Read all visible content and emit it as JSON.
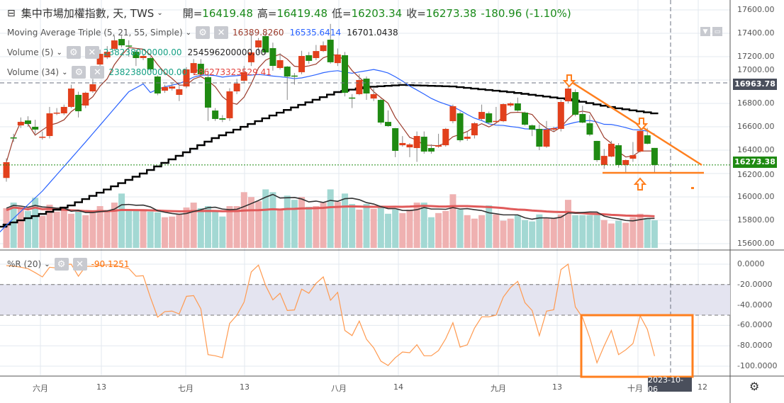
{
  "header": {
    "symbol": "集中市場加權指數, 天, TWS",
    "open_label": "開=",
    "open": "16419.48",
    "high_label": "高=",
    "high": "16419.48",
    "low_label": "低=",
    "low": "16203.34",
    "close_label": "收=",
    "close": "16273.38",
    "change": "-180.96 (-1.10%)"
  },
  "indicators": {
    "ma": {
      "label": "Moving Average Triple (5, 21, 55, Simple)",
      "v1": "16389.8260",
      "v2": "16535.6414",
      "v3": "16701.0438"
    },
    "vol5": {
      "label": "Volume (5)",
      "v1": "238238000000.00",
      "v2": "254596200000.00"
    },
    "vol34": {
      "label": "Volume (34)",
      "v1": "238238000000.00",
      "v2": "286273323529.41"
    },
    "wr": {
      "label": "%R (20)",
      "v1": "-90.1251"
    }
  },
  "price_axis": [
    "17600.00",
    "17400.00",
    "17200.00",
    "17000.00",
    "16800.00",
    "16600.00",
    "16400.00",
    "16200.00",
    "16000.00",
    "15800.00",
    "15600.00"
  ],
  "price_tags": {
    "crosshair": "16963.78",
    "last": "16273.38"
  },
  "wr_axis": [
    "0.0000",
    "-20.0000",
    "-40.0000",
    "-60.0000",
    "-80.0000",
    "-100.0000"
  ],
  "time_axis": [
    "六月",
    "13",
    "七月",
    "13",
    "八月",
    "14",
    "九月",
    "13",
    "十月",
    "12"
  ],
  "crosshair_date": "2023-10-06",
  "colors": {
    "up": "#e2401c",
    "down": "#1f8a12",
    "vol_up": "#efb1b1",
    "vol_down": "#a3d8d3",
    "ma5": "#9b3a2a",
    "ma21": "#2962ff",
    "ma55": "#000000",
    "wr": "#ff9a50",
    "drawing": "#ff7f1e"
  },
  "chart_data": {
    "type": "candlestick",
    "price_range": [
      15550,
      17700
    ],
    "ohlc": [
      [
        16162,
        16330,
        16130,
        16297
      ],
      [
        16509,
        16540,
        16470,
        16505
      ],
      [
        16612,
        16680,
        16590,
        16642
      ],
      [
        16654,
        16690,
        16600,
        16624
      ],
      [
        16600,
        16660,
        16540,
        16576
      ],
      [
        16512,
        16560,
        16490,
        16515
      ],
      [
        16521,
        16770,
        16500,
        16715
      ],
      [
        16718,
        16760,
        16700,
        16721
      ],
      [
        16715,
        16790,
        16700,
        16770
      ],
      [
        16770,
        16960,
        16760,
        16927
      ],
      [
        16873,
        16900,
        16680,
        16733
      ],
      [
        16782,
        16900,
        16760,
        16891
      ],
      [
        16903,
        17010,
        16890,
        16964
      ],
      [
        17133,
        17260,
        17100,
        17224
      ],
      [
        17194,
        17290,
        17180,
        17242
      ],
      [
        17267,
        17380,
        17250,
        17339
      ],
      [
        17351,
        17380,
        17280,
        17297
      ],
      [
        17295,
        17340,
        17200,
        17288
      ],
      [
        17242,
        17260,
        17120,
        17188
      ],
      [
        17188,
        17220,
        17170,
        17206
      ],
      [
        17188,
        17200,
        17070,
        17091
      ],
      [
        17030,
        17040,
        16870,
        16885
      ],
      [
        16909,
        16960,
        16890,
        16940
      ],
      [
        16927,
        16980,
        16910,
        16945
      ],
      [
        16873,
        16950,
        16820,
        16921
      ],
      [
        16945,
        17110,
        16930,
        17091
      ],
      [
        17060,
        17180,
        17050,
        17145
      ],
      [
        17139,
        17180,
        17030,
        17048
      ],
      [
        17024,
        17080,
        16650,
        16764
      ],
      [
        16739,
        16760,
        16650,
        16667
      ],
      [
        16673,
        16700,
        16640,
        16661
      ],
      [
        16673,
        16930,
        16650,
        16903
      ],
      [
        16903,
        17010,
        16880,
        16970
      ],
      [
        16994,
        17120,
        16980,
        17067
      ],
      [
        17152,
        17400,
        17120,
        17236
      ],
      [
        17279,
        17360,
        17230,
        17339
      ],
      [
        17376,
        17400,
        17220,
        17236
      ],
      [
        17273,
        17320,
        17080,
        17121
      ],
      [
        17103,
        17230,
        17090,
        17170
      ],
      [
        17115,
        17120,
        16830,
        17030
      ],
      [
        17038,
        17060,
        16960,
        17034
      ],
      [
        17067,
        17250,
        17050,
        17206
      ],
      [
        17212,
        17240,
        17140,
        17164
      ],
      [
        17188,
        17300,
        17170,
        17248
      ],
      [
        17248,
        17330,
        17240,
        17297
      ],
      [
        17345,
        17480,
        17140,
        17152
      ],
      [
        17145,
        17270,
        17120,
        17218
      ],
      [
        17212,
        17240,
        16860,
        16891
      ],
      [
        16850,
        16880,
        16760,
        16846
      ],
      [
        16879,
        17050,
        16870,
        17000
      ],
      [
        17012,
        17030,
        16830,
        16885
      ],
      [
        16842,
        16930,
        16820,
        16879
      ],
      [
        16830,
        16840,
        16620,
        16636
      ],
      [
        16642,
        16740,
        16600,
        16606
      ],
      [
        16588,
        16590,
        16340,
        16394
      ],
      [
        16442,
        16520,
        16430,
        16461
      ],
      [
        16424,
        16460,
        16340,
        16449
      ],
      [
        16418,
        16560,
        16300,
        16521
      ],
      [
        16515,
        16560,
        16370,
        16388
      ],
      [
        16418,
        16450,
        16370,
        16388
      ],
      [
        16430,
        16540,
        16420,
        16442
      ],
      [
        16442,
        16590,
        16430,
        16582
      ],
      [
        16648,
        16790,
        16630,
        16776
      ],
      [
        16715,
        16730,
        16470,
        16485
      ],
      [
        16497,
        16560,
        16480,
        16515
      ],
      [
        16527,
        16640,
        16500,
        16630
      ],
      [
        16667,
        16790,
        16650,
        16727
      ],
      [
        16715,
        16730,
        16620,
        16636
      ],
      [
        16646,
        16770,
        16630,
        16650
      ],
      [
        16648,
        16800,
        16640,
        16794
      ],
      [
        16782,
        16810,
        16770,
        16800
      ],
      [
        16800,
        16850,
        16730,
        16739
      ],
      [
        16721,
        16730,
        16610,
        16618
      ],
      [
        16612,
        16620,
        16520,
        16576
      ],
      [
        16582,
        16620,
        16400,
        16430
      ],
      [
        16430,
        16650,
        16420,
        16576
      ],
      [
        16576,
        16600,
        16560,
        16588
      ],
      [
        16582,
        16830,
        16560,
        16812
      ],
      [
        16818,
        16960,
        16800,
        16927
      ],
      [
        16897,
        16920,
        16690,
        16703
      ],
      [
        16709,
        16780,
        16630,
        16636
      ],
      [
        16630,
        16700,
        16520,
        16533
      ],
      [
        16479,
        16480,
        16300,
        16315
      ],
      [
        16273,
        16410,
        16240,
        16351
      ],
      [
        16345,
        16480,
        16340,
        16455
      ],
      [
        16442,
        16460,
        16250,
        16273
      ],
      [
        16273,
        16320,
        16200,
        16315
      ],
      [
        16327,
        16470,
        16300,
        16357
      ],
      [
        16388,
        16580,
        16380,
        16564
      ],
      [
        16527,
        16590,
        16450,
        16455
      ],
      [
        16419,
        16419,
        16203,
        16273
      ]
    ],
    "volume_e8": [
      3420,
      3900,
      3480,
      3180,
      4320,
      2760,
      3720,
      3120,
      3240,
      2940,
      3120,
      2820,
      3120,
      3600,
      3240,
      3900,
      4680,
      3300,
      3240,
      3300,
      3120,
      3060,
      2640,
      2700,
      2940,
      3480,
      3900,
      3420,
      3600,
      3120,
      2700,
      3600,
      3600,
      4800,
      4380,
      4020,
      5040,
      4800,
      3240,
      4500,
      4140,
      4380,
      3540,
      3600,
      3900,
      5040,
      3960,
      4680,
      3780,
      3300,
      3780,
      3360,
      3540,
      2940,
      3300,
      3000,
      3300,
      3900,
      3900,
      2640,
      3000,
      3180,
      4620,
      3300,
      2820,
      2520,
      2820,
      3660,
      2880,
      2340,
      2520,
      2820,
      2400,
      2280,
      2880,
      2580,
      2580,
      2880,
      4140,
      2820,
      2820,
      2820,
      2820,
      2400,
      2100,
      2340,
      2160,
      2640,
      2940,
      2580,
      2382
    ],
    "ma21_early_keypoints": [
      [
        -1,
        15700
      ],
      [
        5,
        16050
      ],
      [
        11,
        16470
      ],
      [
        17,
        16900
      ],
      [
        20,
        17000
      ]
    ],
    "ma55_keypoints": [
      [
        -1,
        15745
      ],
      [
        9,
        15927
      ],
      [
        19,
        16200
      ],
      [
        29,
        16503
      ],
      [
        38.5,
        16733
      ],
      [
        46,
        16897
      ],
      [
        50,
        16939
      ],
      [
        55,
        16958
      ],
      [
        62,
        16945
      ],
      [
        70,
        16897
      ],
      [
        78,
        16836
      ],
      [
        85,
        16758
      ],
      [
        90,
        16715
      ]
    ],
    "williams_r": [
      -1.4,
      -1.8,
      -3,
      -4.4,
      -8.3,
      -12.5,
      -3,
      -3.7,
      -0.2,
      0,
      -11.8,
      -2.1,
      -2.1,
      -1.2,
      -0.7,
      -0.7,
      -3,
      -4.2,
      -11.8,
      -11.3,
      -32.6,
      -51.9,
      -46.5,
      -46,
      -48.8,
      -31.5,
      -30.8,
      -43.8,
      -88.7,
      -89.8,
      -91.7,
      -58.1,
      -50,
      -37.3,
      -7.6,
      -0.9,
      -21,
      -35,
      -28.5,
      -45.4,
      -44.9,
      -24.5,
      -28.5,
      -18.8,
      -12.5,
      -35.4,
      -27.6,
      -65,
      -70,
      -55.8,
      -73.6,
      -82,
      -95.1,
      -99.3,
      -91.7,
      -86.1,
      -86.8,
      -79,
      -89.8,
      -89.8,
      -84.7,
      -73.1,
      -57.4,
      -81.3,
      -79,
      -62.7,
      -51.6,
      -51.6,
      -50,
      -32.2,
      -22.9,
      -16.9,
      -37.7,
      -45.4,
      -70.1,
      -46,
      -44.7,
      -5.3,
      0,
      -41.9,
      -52.3,
      -72,
      -96.7,
      -80.1,
      -65,
      -88.7,
      -84,
      -77.8,
      -50.7,
      -63.9,
      -90.1
    ],
    "wr_range": [
      -100,
      0
    ],
    "wr_band": [
      -50,
      -20
    ]
  }
}
